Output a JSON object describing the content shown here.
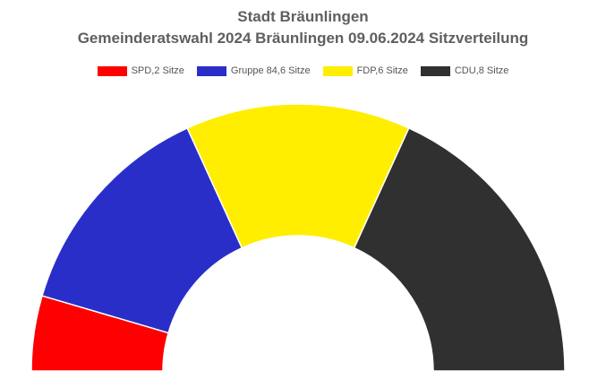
{
  "chart_data": {
    "type": "pie",
    "subtype": "parliament-semicircle",
    "title": "Stadt Bräunlingen",
    "subtitle": "Gemeinderatswahl 2024 Bräunlingen 09.06.2024 Sitzverteilung",
    "legend_position": "top",
    "categories": [
      "SPD",
      "Gruppe 84",
      "FDP",
      "CDU"
    ],
    "values": [
      2,
      6,
      6,
      8
    ],
    "colors": [
      "#ff0000",
      "#2a2ec9",
      "#ffee00",
      "#303030"
    ],
    "legend_labels": [
      "SPD,2 Sitze",
      "Gruppe 84,6 Sitze",
      "FDP,6 Sitze",
      "CDU,8 Sitze"
    ]
  }
}
